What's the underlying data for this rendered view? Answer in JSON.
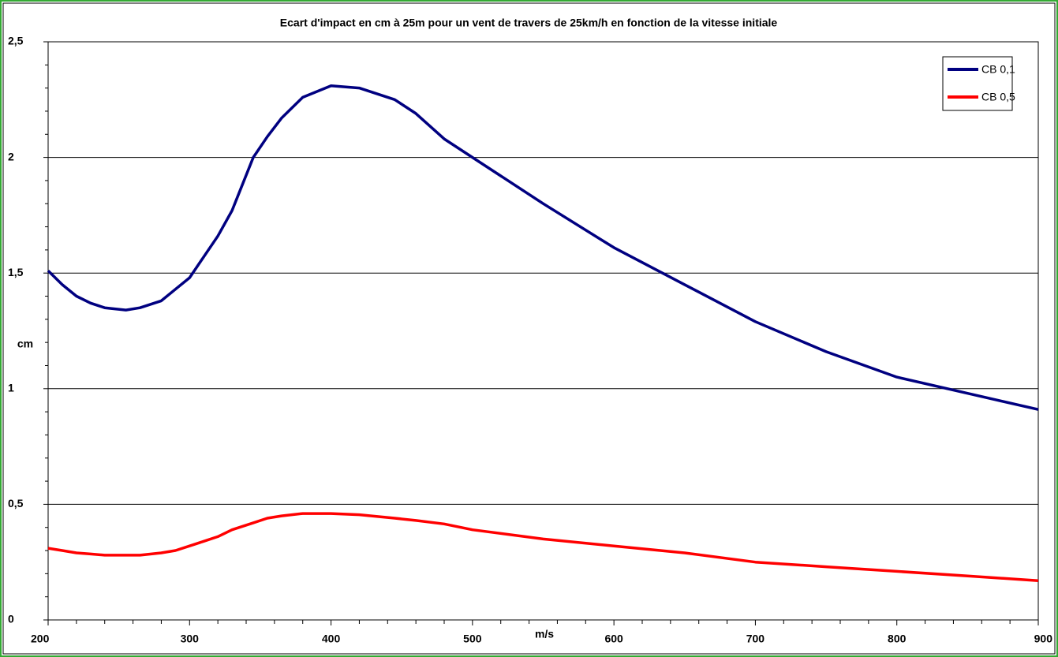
{
  "chart_data": {
    "type": "line",
    "title": "Ecart d'impact en cm à 25m pour un vent de travers de 25km/h en fonction de la vitesse initiale",
    "xlabel": "m/s",
    "ylabel": "cm",
    "x": [
      200,
      210,
      220,
      230,
      240,
      255,
      265,
      280,
      290,
      300,
      310,
      320,
      330,
      345,
      355,
      365,
      380,
      400,
      420,
      445,
      460,
      480,
      500,
      550,
      600,
      650,
      700,
      750,
      800,
      850,
      900
    ],
    "series": [
      {
        "name": "CB 0,1",
        "color": "#000080",
        "values": [
          1.51,
          1.45,
          1.4,
          1.37,
          1.35,
          1.34,
          1.35,
          1.38,
          1.43,
          1.48,
          1.57,
          1.66,
          1.77,
          2.0,
          2.09,
          2.17,
          2.26,
          2.31,
          2.3,
          2.25,
          2.19,
          2.08,
          2.0,
          1.8,
          1.61,
          1.45,
          1.29,
          1.16,
          1.05,
          0.98,
          0.91
        ]
      },
      {
        "name": "CB 0,5",
        "color": "#ff0000",
        "values": [
          0.31,
          0.3,
          0.29,
          0.285,
          0.28,
          0.28,
          0.28,
          0.29,
          0.3,
          0.32,
          0.34,
          0.36,
          0.39,
          0.42,
          0.44,
          0.45,
          0.46,
          0.46,
          0.455,
          0.44,
          0.43,
          0.415,
          0.39,
          0.35,
          0.32,
          0.29,
          0.25,
          0.23,
          0.21,
          0.19,
          0.17
        ]
      }
    ],
    "xlim": [
      200,
      900
    ],
    "xticks": [
      200,
      300,
      400,
      500,
      600,
      700,
      800,
      900
    ],
    "xminorticks": [
      220,
      240,
      260,
      280,
      320,
      340,
      360,
      380,
      420,
      440,
      460,
      480,
      520,
      540,
      560,
      580,
      620,
      640,
      660,
      680,
      720,
      740,
      760,
      780,
      820,
      840,
      860,
      880
    ],
    "ylim": [
      0,
      2.5
    ],
    "yticks": [
      0,
      {
        "value": 0.5,
        "label": "0,5"
      },
      1,
      {
        "value": 1.5,
        "label": "1,5"
      },
      2,
      {
        "value": 2.5,
        "label": "2,5"
      }
    ],
    "yminorticks": [
      0.1,
      0.2,
      0.3,
      0.4,
      0.6,
      0.7,
      0.8,
      0.9,
      1.1,
      1.2,
      1.3,
      1.4,
      1.6,
      1.7,
      1.8,
      1.9,
      2.1,
      2.2,
      2.3,
      2.4
    ],
    "grid": true,
    "legend": "upper right"
  }
}
